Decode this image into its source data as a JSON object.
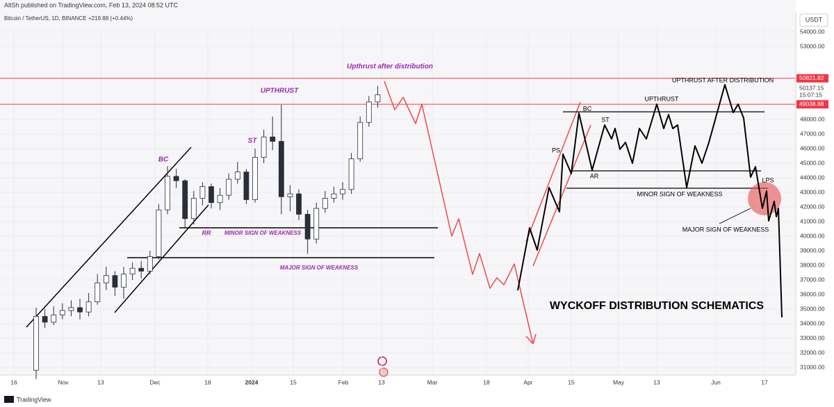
{
  "header": {
    "publisher": "AltSh published on TradingView.com, Feb 13, 2024 08:52 UTC",
    "symbol": "Bitcoin / TetherUS, 1D, BINANCE",
    "change": "+219.88 (+0.44%)",
    "brand": "TradingView"
  },
  "chart_data": {
    "type": "candlestick",
    "open": [
      30800,
      34500,
      34100,
      34600,
      34900,
      35100,
      34800,
      35500,
      36800,
      37300,
      36500,
      37400,
      37800,
      37600,
      38600,
      41800,
      44100,
      43800,
      41200,
      42600,
      43400,
      42300,
      42800,
      43900,
      44400,
      42500,
      45400,
      46800,
      46500,
      42700,
      42900,
      41500,
      39800,
      41900,
      42600,
      42900,
      43200,
      45300,
      47800,
      49200
    ],
    "high": [
      35100,
      35000,
      35200,
      35400,
      35600,
      35700,
      36100,
      37400,
      37900,
      37600,
      37900,
      38200,
      38300,
      39000,
      42200,
      44800,
      44600,
      43900,
      43100,
      43700,
      43600,
      43300,
      44300,
      45100,
      44600,
      46000,
      47300,
      48200,
      49000,
      43500,
      43200,
      41800,
      42300,
      43100,
      43400,
      43700,
      45700,
      48200,
      49600,
      50300
    ],
    "low": [
      30200,
      33700,
      33900,
      34300,
      34500,
      34300,
      34500,
      35300,
      36300,
      35900,
      35700,
      37000,
      37100,
      37400,
      38400,
      41500,
      43300,
      40600,
      40800,
      42100,
      41900,
      41800,
      42500,
      43600,
      42200,
      42300,
      45000,
      45900,
      41500,
      41700,
      41100,
      38800,
      39500,
      41600,
      42300,
      42500,
      42900,
      45100,
      47500,
      48800
    ],
    "close": [
      34500,
      34100,
      34600,
      34900,
      35100,
      34800,
      35500,
      36800,
      37300,
      36500,
      37400,
      37800,
      37600,
      38600,
      41800,
      44100,
      43800,
      41200,
      42600,
      43400,
      42300,
      42800,
      43900,
      44400,
      42500,
      45400,
      46800,
      46500,
      42700,
      42900,
      41500,
      39800,
      41900,
      42600,
      42900,
      43200,
      45300,
      47800,
      49200,
      49700
    ],
    "up_color": "#ffffff",
    "down_color": "#2a2e39",
    "ylim": [
      30000,
      55000
    ],
    "yticks": [
      {
        "value": 31000,
        "label": "31000.00"
      },
      {
        "value": 32000,
        "label": "32000.00"
      },
      {
        "value": 33000,
        "label": "33000.00"
      },
      {
        "value": 34000,
        "label": "34000.00"
      },
      {
        "value": 35000,
        "label": "35000.00"
      },
      {
        "value": 36000,
        "label": "36000.00"
      },
      {
        "value": 37000,
        "label": "37000.00"
      },
      {
        "value": 38000,
        "label": "38000.00"
      },
      {
        "value": 39000,
        "label": "39000.00"
      },
      {
        "value": 40000,
        "label": "40000.00"
      },
      {
        "value": 41000,
        "label": "41000.00"
      },
      {
        "value": 42000,
        "label": "42000.00"
      },
      {
        "value": 43000,
        "label": "43000.00"
      },
      {
        "value": 44000,
        "label": "44000.00"
      },
      {
        "value": 45000,
        "label": "45000.00"
      },
      {
        "value": 46000,
        "label": "46000.00"
      },
      {
        "value": 47000,
        "label": "47000.00"
      },
      {
        "value": 48000,
        "label": "48000.00"
      },
      {
        "value": 53000,
        "label": "53000.00"
      },
      {
        "value": 54000,
        "label": "54000.00"
      }
    ],
    "grid": true,
    "currency": "USDT",
    "price_lines": [
      {
        "value": 50821.82,
        "color": "#f23645"
      },
      {
        "value": 49038.88,
        "color": "#f23645"
      }
    ],
    "last_price": {
      "value": 50137.15,
      "countdown": "15:07:15"
    },
    "xtick_labels": [
      "16",
      "Nov",
      "13",
      "Dec",
      "18",
      "2024",
      "15",
      "Feb",
      "13",
      "Mar",
      "18",
      "Apr",
      "15",
      "May",
      "13",
      "Jun",
      "17"
    ],
    "annotations": [
      "BC",
      "ST",
      "UPTHRUST",
      "Upthrust after distribution",
      "RR",
      "MINOR SIGN OF WEAKNESS",
      "MAJOR SIGN OF WEAKNESS",
      "BC",
      "ST",
      "PS",
      "AR",
      "UPTHRUST",
      "UPTHRUST AFTER DISTRIBUTION",
      "LPS",
      "MINOR SIGN OF WEAKNESS",
      "MAJOR SIGN OF WEAKNESS",
      "WYCKOFF DISTRIBUTION SCHEMATICS"
    ]
  }
}
